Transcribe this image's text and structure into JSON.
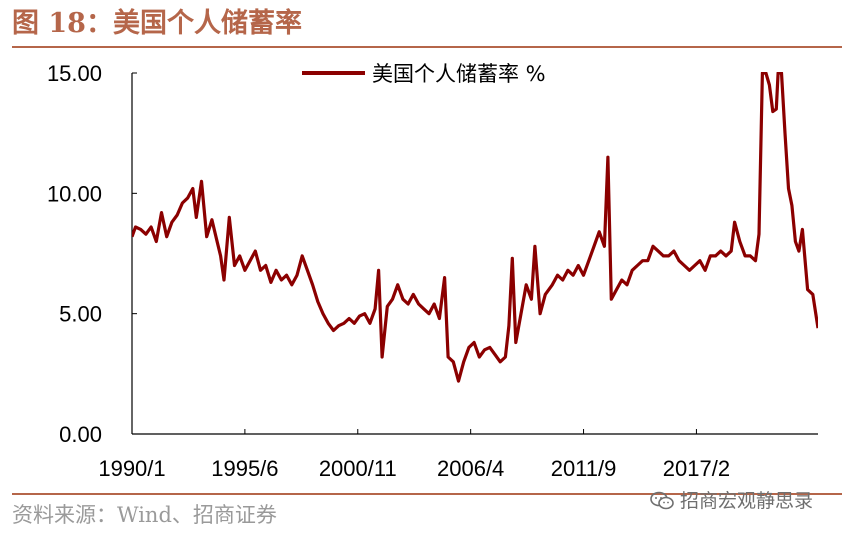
{
  "header": {
    "title": "图 18：美国个人储蓄率"
  },
  "footer": {
    "source": "资料来源：Wind、招商证券",
    "watermark": "招商宏观静思录",
    "watermark_icon": "wechat-icon"
  },
  "colors": {
    "accent": "#b5664a",
    "series": "#8b0000"
  },
  "chart_data": {
    "type": "line",
    "title": "图 18：美国个人储蓄率",
    "xlabel": "",
    "ylabel": "",
    "ylim": [
      0,
      15
    ],
    "xlim": [
      "1990-01",
      "2022-12"
    ],
    "grid": false,
    "legend_position": "top",
    "y_ticks": [
      "0.00",
      "5.00",
      "10.00",
      "15.00"
    ],
    "x_ticks": [
      "1990/1",
      "1995/6",
      "2000/11",
      "2006/4",
      "2011/9",
      "2017/2"
    ],
    "series": [
      {
        "name": "美国个人储蓄率 %",
        "points": [
          [
            "1990-01",
            8.2
          ],
          [
            "1990-03",
            8.6
          ],
          [
            "1990-06",
            8.5
          ],
          [
            "1990-09",
            8.3
          ],
          [
            "1990-12",
            8.6
          ],
          [
            "1991-03",
            8.0
          ],
          [
            "1991-06",
            9.2
          ],
          [
            "1991-09",
            8.2
          ],
          [
            "1991-12",
            8.8
          ],
          [
            "1992-03",
            9.1
          ],
          [
            "1992-06",
            9.6
          ],
          [
            "1992-09",
            9.8
          ],
          [
            "1992-12",
            10.2
          ],
          [
            "1993-02",
            9.0
          ],
          [
            "1993-05",
            10.5
          ],
          [
            "1993-08",
            8.2
          ],
          [
            "1993-11",
            8.9
          ],
          [
            "1994-02",
            8.0
          ],
          [
            "1994-04",
            7.4
          ],
          [
            "1994-06",
            6.4
          ],
          [
            "1994-09",
            9.0
          ],
          [
            "1994-12",
            7.0
          ],
          [
            "1995-03",
            7.4
          ],
          [
            "1995-06",
            6.8
          ],
          [
            "1995-09",
            7.2
          ],
          [
            "1995-12",
            7.6
          ],
          [
            "1996-03",
            6.8
          ],
          [
            "1996-06",
            7.0
          ],
          [
            "1996-09",
            6.3
          ],
          [
            "1996-12",
            6.8
          ],
          [
            "1997-03",
            6.4
          ],
          [
            "1997-06",
            6.6
          ],
          [
            "1997-09",
            6.2
          ],
          [
            "1997-12",
            6.6
          ],
          [
            "1998-03",
            7.4
          ],
          [
            "1998-06",
            6.8
          ],
          [
            "1998-09",
            6.2
          ],
          [
            "1998-12",
            5.5
          ],
          [
            "1999-03",
            5.0
          ],
          [
            "1999-06",
            4.6
          ],
          [
            "1999-09",
            4.3
          ],
          [
            "1999-12",
            4.5
          ],
          [
            "2000-03",
            4.6
          ],
          [
            "2000-06",
            4.8
          ],
          [
            "2000-09",
            4.6
          ],
          [
            "2000-12",
            4.9
          ],
          [
            "2001-03",
            5.0
          ],
          [
            "2001-06",
            4.6
          ],
          [
            "2001-09",
            5.2
          ],
          [
            "2001-11",
            6.8
          ],
          [
            "2002-01",
            3.2
          ],
          [
            "2002-04",
            5.3
          ],
          [
            "2002-07",
            5.6
          ],
          [
            "2002-10",
            6.2
          ],
          [
            "2003-01",
            5.6
          ],
          [
            "2003-04",
            5.4
          ],
          [
            "2003-07",
            5.8
          ],
          [
            "2003-10",
            5.4
          ],
          [
            "2004-01",
            5.2
          ],
          [
            "2004-04",
            5.0
          ],
          [
            "2004-07",
            5.4
          ],
          [
            "2004-10",
            4.8
          ],
          [
            "2005-01",
            6.5
          ],
          [
            "2005-03",
            3.2
          ],
          [
            "2005-06",
            3.0
          ],
          [
            "2005-09",
            2.2
          ],
          [
            "2005-12",
            3.0
          ],
          [
            "2006-03",
            3.6
          ],
          [
            "2006-06",
            3.8
          ],
          [
            "2006-09",
            3.2
          ],
          [
            "2006-12",
            3.5
          ],
          [
            "2007-03",
            3.6
          ],
          [
            "2007-06",
            3.3
          ],
          [
            "2007-09",
            3.0
          ],
          [
            "2007-12",
            3.2
          ],
          [
            "2008-02",
            4.5
          ],
          [
            "2008-04",
            7.3
          ],
          [
            "2008-06",
            3.8
          ],
          [
            "2008-09",
            5.0
          ],
          [
            "2008-12",
            6.2
          ],
          [
            "2009-03",
            5.6
          ],
          [
            "2009-05",
            7.8
          ],
          [
            "2009-08",
            5.0
          ],
          [
            "2009-11",
            5.8
          ],
          [
            "2010-03",
            6.2
          ],
          [
            "2010-06",
            6.6
          ],
          [
            "2010-09",
            6.4
          ],
          [
            "2010-12",
            6.8
          ],
          [
            "2011-03",
            6.6
          ],
          [
            "2011-06",
            7.0
          ],
          [
            "2011-09",
            6.6
          ],
          [
            "2011-12",
            7.2
          ],
          [
            "2012-03",
            7.8
          ],
          [
            "2012-06",
            8.4
          ],
          [
            "2012-09",
            7.8
          ],
          [
            "2012-11",
            11.5
          ],
          [
            "2013-01",
            5.6
          ],
          [
            "2013-04",
            6.0
          ],
          [
            "2013-07",
            6.4
          ],
          [
            "2013-10",
            6.2
          ],
          [
            "2014-01",
            6.8
          ],
          [
            "2014-04",
            7.0
          ],
          [
            "2014-07",
            7.2
          ],
          [
            "2014-10",
            7.2
          ],
          [
            "2015-01",
            7.8
          ],
          [
            "2015-04",
            7.6
          ],
          [
            "2015-07",
            7.4
          ],
          [
            "2015-10",
            7.4
          ],
          [
            "2016-01",
            7.6
          ],
          [
            "2016-04",
            7.2
          ],
          [
            "2016-07",
            7.0
          ],
          [
            "2016-10",
            6.8
          ],
          [
            "2017-01",
            7.0
          ],
          [
            "2017-04",
            7.2
          ],
          [
            "2017-07",
            6.8
          ],
          [
            "2017-10",
            7.4
          ],
          [
            "2018-01",
            7.4
          ],
          [
            "2018-04",
            7.6
          ],
          [
            "2018-07",
            7.4
          ],
          [
            "2018-10",
            7.6
          ],
          [
            "2018-12",
            8.8
          ],
          [
            "2019-03",
            8.0
          ],
          [
            "2019-06",
            7.4
          ],
          [
            "2019-09",
            7.4
          ],
          [
            "2019-12",
            7.2
          ],
          [
            "2020-02",
            8.3
          ],
          [
            "2020-04",
            15.0
          ],
          [
            "2020-06",
            15.0
          ],
          [
            "2020-08",
            14.5
          ],
          [
            "2020-10",
            13.4
          ],
          [
            "2020-12",
            13.5
          ],
          [
            "2021-01",
            15.0
          ],
          [
            "2021-03",
            15.0
          ],
          [
            "2021-05",
            12.5
          ],
          [
            "2021-07",
            10.2
          ],
          [
            "2021-09",
            9.5
          ],
          [
            "2021-11",
            8.0
          ],
          [
            "2022-01",
            7.6
          ],
          [
            "2022-03",
            8.5
          ],
          [
            "2022-06",
            6.0
          ],
          [
            "2022-09",
            5.8
          ],
          [
            "2022-12",
            4.4
          ]
        ]
      }
    ]
  }
}
